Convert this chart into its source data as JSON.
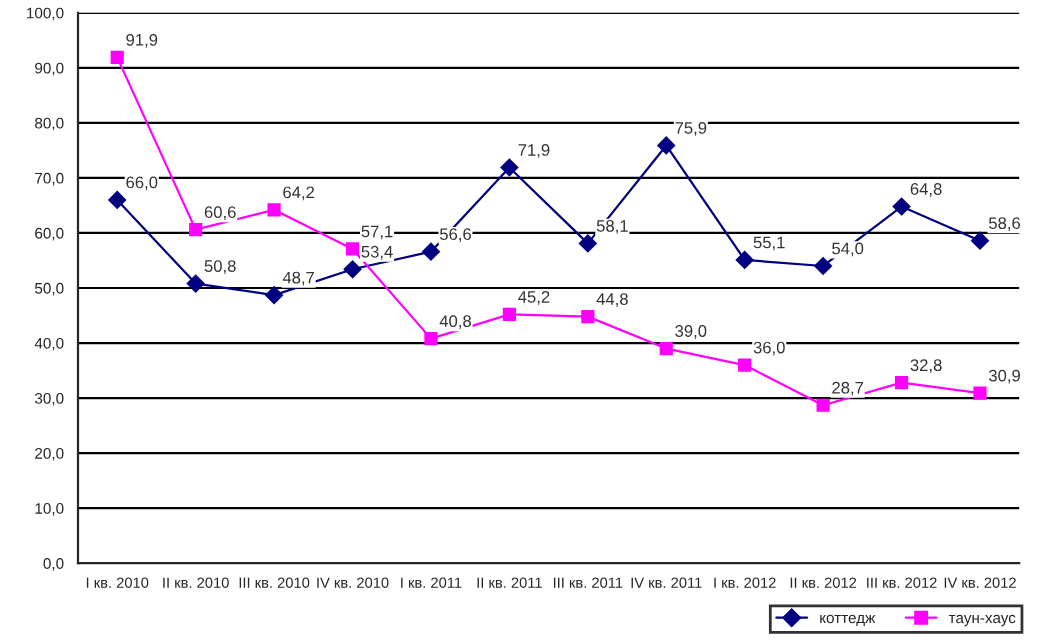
{
  "chart_data": {
    "type": "line",
    "categories": [
      "I кв. 2010",
      "II кв. 2010",
      "III кв. 2010",
      "IV кв. 2010",
      "I кв. 2011",
      "II кв. 2011",
      "III кв. 2011",
      "IV кв. 2011",
      "I кв. 2012",
      "II кв. 2012",
      "III кв. 2012",
      "IV кв. 2012"
    ],
    "series": [
      {
        "name": "коттедж",
        "color": "#000080",
        "marker": "diamond",
        "values": [
          66.0,
          50.8,
          48.7,
          53.4,
          56.6,
          71.9,
          58.1,
          75.9,
          55.1,
          54.0,
          64.8,
          58.6
        ],
        "value_labels": [
          "66,0",
          "50,8",
          "48,7",
          "53,4",
          "56,6",
          "71,9",
          "58,1",
          "75,9",
          "55,1",
          "54,0",
          "64,8",
          "58,6"
        ]
      },
      {
        "name": "таун-хаус",
        "color": "#ff00ff",
        "marker": "square",
        "values": [
          91.9,
          60.6,
          64.2,
          57.1,
          40.8,
          45.2,
          44.8,
          39.0,
          36.0,
          28.7,
          32.8,
          30.9
        ],
        "value_labels": [
          "91,9",
          "60,6",
          "64,2",
          "57,1",
          "40,8",
          "45,2",
          "44,8",
          "39,0",
          "36,0",
          "28,7",
          "32,8",
          "30,9"
        ]
      }
    ],
    "ylim": [
      0,
      100
    ],
    "yticks": [
      {
        "value": 0,
        "label": "0,0"
      },
      {
        "value": 10,
        "label": "10,0"
      },
      {
        "value": 20,
        "label": "20,0"
      },
      {
        "value": 30,
        "label": "30,0"
      },
      {
        "value": 40,
        "label": "40,0"
      },
      {
        "value": 50,
        "label": "50,0"
      },
      {
        "value": 60,
        "label": "60,0"
      },
      {
        "value": 70,
        "label": "70,0"
      },
      {
        "value": 80,
        "label": "80,0"
      },
      {
        "value": 90,
        "label": "90,0"
      },
      {
        "value": 100,
        "label": "100,0"
      }
    ],
    "grid": "y",
    "legend": "bottom"
  }
}
